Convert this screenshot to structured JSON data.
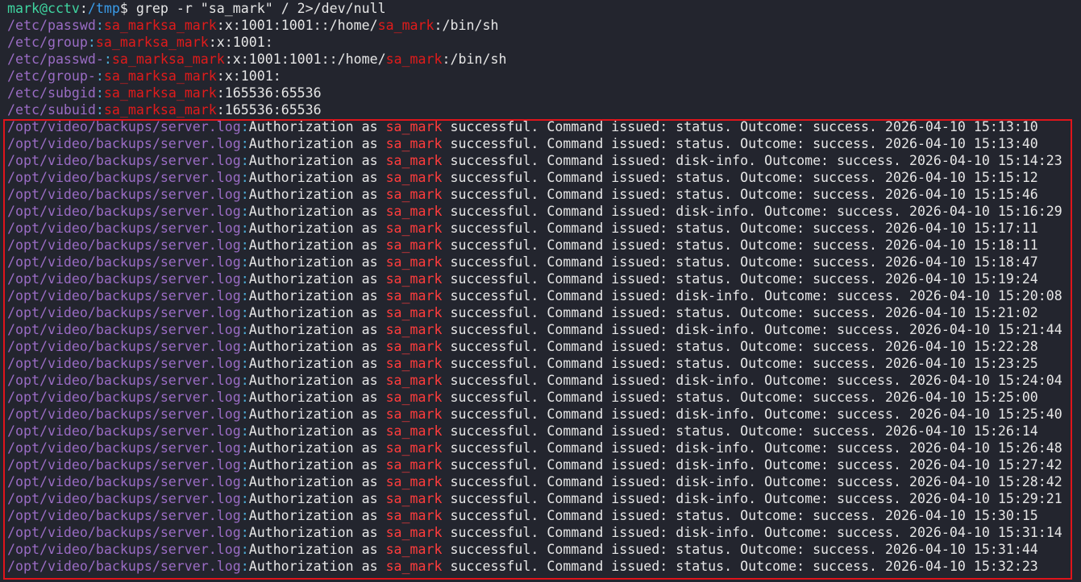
{
  "prompt": {
    "user_host": "mark@cctv",
    "colon": ":",
    "cwd": "/tmp",
    "symbol": "$",
    "command": " grep -r \"sa_mark\" / 2>/dev/null"
  },
  "match_term": "sa_mark",
  "system_results": [
    {
      "file": "/etc/passwd",
      "segments": [
        "",
        ":x:1001:1001::/home/",
        ":/bin/sh"
      ]
    },
    {
      "file": "/etc/group",
      "segments": [
        "",
        ":x:1001:"
      ]
    },
    {
      "file": "/etc/passwd-",
      "segments": [
        "",
        ":x:1001:1001::/home/",
        ":/bin/sh"
      ]
    },
    {
      "file": "/etc/group-",
      "segments": [
        "",
        ":x:1001:"
      ]
    },
    {
      "file": "/etc/subgid",
      "segments": [
        "",
        ":165536:65536"
      ]
    },
    {
      "file": "/etc/subuid",
      "segments": [
        "",
        ":165536:65536"
      ]
    }
  ],
  "log_file": "/opt/video/backups/server.log",
  "log_prefix": "Authorization as ",
  "log_mid": " successful. Command issued: ",
  "log_outcome": ". Outcome: success. ",
  "log_entries": [
    {
      "command": "status",
      "timestamp": "2026-04-10 15:13:10"
    },
    {
      "command": "status",
      "timestamp": "2026-04-10 15:13:40"
    },
    {
      "command": "disk-info",
      "timestamp": "2026-04-10 15:14:23"
    },
    {
      "command": "status",
      "timestamp": "2026-04-10 15:15:12"
    },
    {
      "command": "status",
      "timestamp": "2026-04-10 15:15:46"
    },
    {
      "command": "disk-info",
      "timestamp": "2026-04-10 15:16:29"
    },
    {
      "command": "status",
      "timestamp": "2026-04-10 15:17:11"
    },
    {
      "command": "status",
      "timestamp": "2026-04-10 15:18:11"
    },
    {
      "command": "status",
      "timestamp": "2026-04-10 15:18:47"
    },
    {
      "command": "status",
      "timestamp": "2026-04-10 15:19:24"
    },
    {
      "command": "disk-info",
      "timestamp": "2026-04-10 15:20:08"
    },
    {
      "command": "status",
      "timestamp": "2026-04-10 15:21:02"
    },
    {
      "command": "disk-info",
      "timestamp": "2026-04-10 15:21:44"
    },
    {
      "command": "status",
      "timestamp": "2026-04-10 15:22:28"
    },
    {
      "command": "status",
      "timestamp": "2026-04-10 15:23:25"
    },
    {
      "command": "disk-info",
      "timestamp": "2026-04-10 15:24:04"
    },
    {
      "command": "status",
      "timestamp": "2026-04-10 15:25:00"
    },
    {
      "command": "disk-info",
      "timestamp": "2026-04-10 15:25:40"
    },
    {
      "command": "status",
      "timestamp": "2026-04-10 15:26:14"
    },
    {
      "command": "disk-info",
      "timestamp": "2026-04-10 15:26:48"
    },
    {
      "command": "disk-info",
      "timestamp": "2026-04-10 15:27:42"
    },
    {
      "command": "disk-info",
      "timestamp": "2026-04-10 15:28:42"
    },
    {
      "command": "disk-info",
      "timestamp": "2026-04-10 15:29:21"
    },
    {
      "command": "status",
      "timestamp": "2026-04-10 15:30:15"
    },
    {
      "command": "disk-info",
      "timestamp": "2026-04-10 15:31:14"
    },
    {
      "command": "status",
      "timestamp": "2026-04-10 15:31:44"
    },
    {
      "command": "status",
      "timestamp": "2026-04-10 15:32:23"
    }
  ],
  "colors": {
    "background": "#23252e",
    "highlight_box": "#e0141b",
    "match": "#e01b1b"
  }
}
